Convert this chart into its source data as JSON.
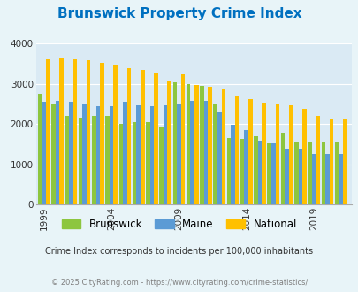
{
  "title": "Brunswick Property Crime Index",
  "years": [
    1999,
    2000,
    2001,
    2002,
    2003,
    2004,
    2005,
    2006,
    2007,
    2008,
    2009,
    2010,
    2011,
    2012,
    2013,
    2014,
    2015,
    2016,
    2017,
    2018,
    2019,
    2020,
    2021
  ],
  "brunswick": [
    2750,
    2500,
    2200,
    2150,
    2200,
    2200,
    2000,
    2050,
    2050,
    1950,
    3050,
    3000,
    2950,
    2500,
    1650,
    1620,
    1700,
    1530,
    1780,
    1560,
    1560,
    1560,
    1560
  ],
  "maine": [
    2560,
    2580,
    2560,
    2480,
    2450,
    2450,
    2560,
    2460,
    2450,
    2470,
    2500,
    2580,
    2580,
    2300,
    1980,
    1850,
    1580,
    1530,
    1380,
    1380,
    1250,
    1250,
    1260
  ],
  "national": [
    3620,
    3660,
    3620,
    3600,
    3530,
    3470,
    3400,
    3340,
    3280,
    3070,
    3250,
    2980,
    2940,
    2870,
    2720,
    2620,
    2530,
    2490,
    2460,
    2370,
    2200,
    2140,
    2110
  ],
  "brunswick_color": "#8dc63f",
  "maine_color": "#5b9bd5",
  "national_color": "#ffc000",
  "bg_color": "#e8f4f8",
  "plot_bg": "#daeaf4",
  "title_color": "#0070c0",
  "subtitle": "Crime Index corresponds to incidents per 100,000 inhabitants",
  "footer": "© 2025 CityRating.com - https://www.cityrating.com/crime-statistics/",
  "footer_color": "#808080",
  "subtitle_color": "#333333",
  "ylim": [
    0,
    4000
  ],
  "yticks": [
    0,
    1000,
    2000,
    3000,
    4000
  ],
  "xtick_positions": [
    1999,
    2004,
    2009,
    2014,
    2019
  ],
  "bar_width": 0.3
}
